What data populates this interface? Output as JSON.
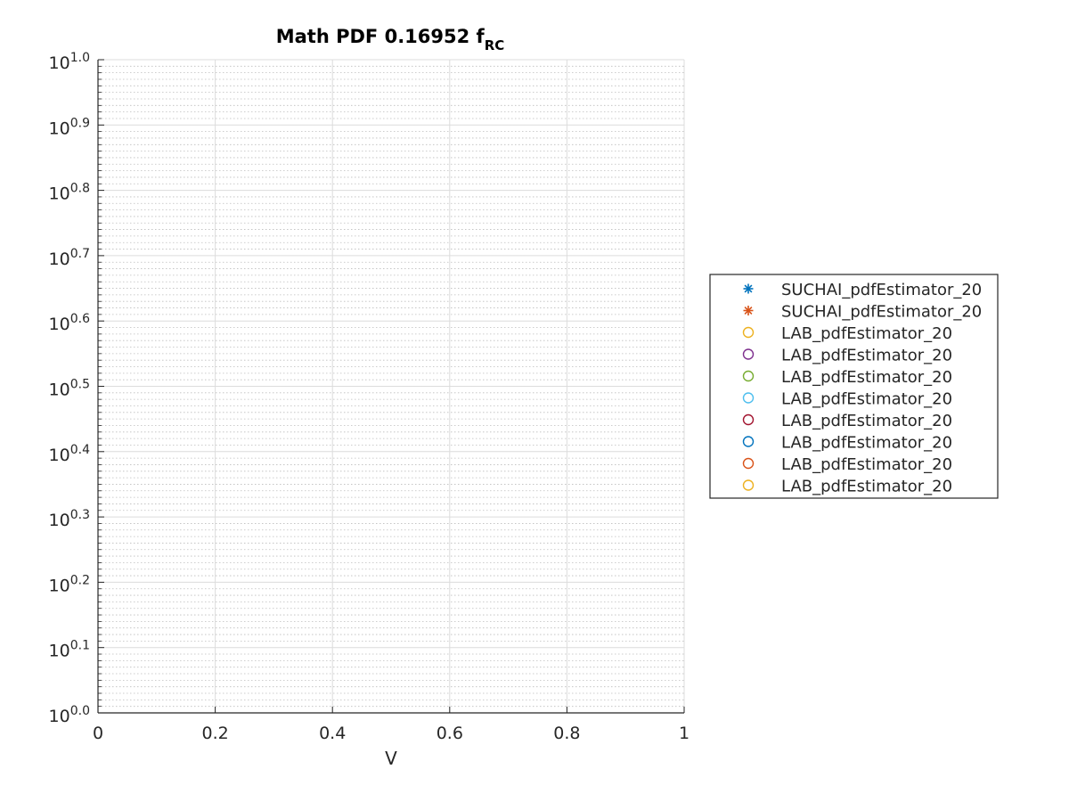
{
  "chart_data": {
    "type": "scatter",
    "title": {
      "main": "Math PDF 0.16952 f",
      "subscript": "RC"
    },
    "xlabel": "V",
    "ylabel": "",
    "xlim": [
      0,
      1
    ],
    "ylim": [
      1,
      10
    ],
    "yscale": "log",
    "xticks": [
      {
        "value": 0,
        "label": "0"
      },
      {
        "value": 0.2,
        "label": "0.2"
      },
      {
        "value": 0.4,
        "label": "0.4"
      },
      {
        "value": 0.6,
        "label": "0.6"
      },
      {
        "value": 0.8,
        "label": "0.8"
      },
      {
        "value": 1,
        "label": "1"
      }
    ],
    "yticks": [
      {
        "exp": 0.0,
        "base": "10",
        "sup": "0.0"
      },
      {
        "exp": 0.1,
        "base": "10",
        "sup": "0.1"
      },
      {
        "exp": 0.2,
        "base": "10",
        "sup": "0.2"
      },
      {
        "exp": 0.3,
        "base": "10",
        "sup": "0.3"
      },
      {
        "exp": 0.4,
        "base": "10",
        "sup": "0.4"
      },
      {
        "exp": 0.5,
        "base": "10",
        "sup": "0.5"
      },
      {
        "exp": 0.6,
        "base": "10",
        "sup": "0.6"
      },
      {
        "exp": 0.7,
        "base": "10",
        "sup": "0.7"
      },
      {
        "exp": 0.8,
        "base": "10",
        "sup": "0.8"
      },
      {
        "exp": 0.9,
        "base": "10",
        "sup": "0.9"
      },
      {
        "exp": 1.0,
        "base": "10",
        "sup": "1.0"
      }
    ],
    "grid": true,
    "minor_grid": true,
    "legend_position": "outside-right",
    "series": [
      {
        "name": "SUCHAI_pdfEstimator_20",
        "marker": "asterisk",
        "color": "#0072BD",
        "x": [],
        "y": []
      },
      {
        "name": "SUCHAI_pdfEstimator_20",
        "marker": "asterisk",
        "color": "#D95319",
        "x": [],
        "y": []
      },
      {
        "name": "LAB_pdfEstimator_20",
        "marker": "circle",
        "color": "#EDB120",
        "x": [],
        "y": []
      },
      {
        "name": "LAB_pdfEstimator_20",
        "marker": "circle",
        "color": "#7E2F8E",
        "x": [],
        "y": []
      },
      {
        "name": "LAB_pdfEstimator_20",
        "marker": "circle",
        "color": "#77AC30",
        "x": [],
        "y": []
      },
      {
        "name": "LAB_pdfEstimator_20",
        "marker": "circle",
        "color": "#4DBEEE",
        "x": [],
        "y": []
      },
      {
        "name": "LAB_pdfEstimator_20",
        "marker": "circle",
        "color": "#A2142F",
        "x": [],
        "y": []
      },
      {
        "name": "LAB_pdfEstimator_20",
        "marker": "circle",
        "color": "#0072BD",
        "x": [],
        "y": []
      },
      {
        "name": "LAB_pdfEstimator_20",
        "marker": "circle",
        "color": "#D95319",
        "x": [],
        "y": []
      },
      {
        "name": "LAB_pdfEstimator_20",
        "marker": "circle",
        "color": "#EDB120",
        "x": [],
        "y": []
      }
    ]
  }
}
